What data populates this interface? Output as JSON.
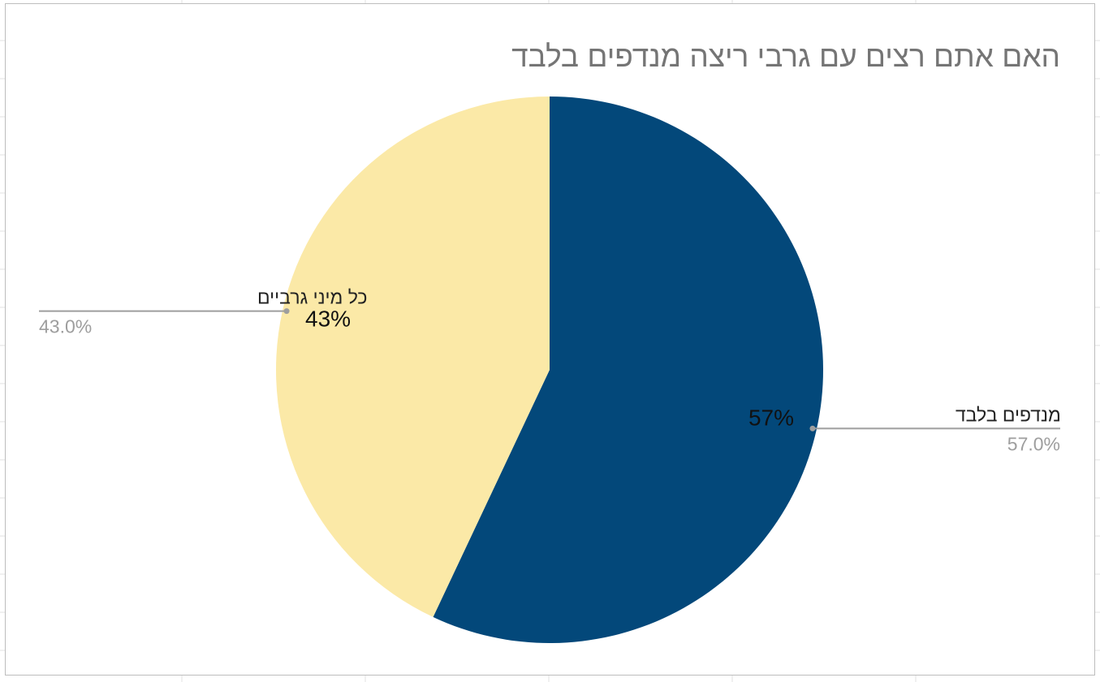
{
  "chart_data": {
    "type": "pie",
    "title": "האם אתם רצים עם גרבי ריצה מנדפים בלבד",
    "slices": [
      {
        "label": "מנדפים בלבד",
        "value": 57.0,
        "inner_label": "57%",
        "outer_value_label": "57.0%",
        "color": "#03487a"
      },
      {
        "label": "כל מיני גרביים",
        "value": 43.0,
        "inner_label": "43%",
        "outer_value_label": "43.0%",
        "color": "#fbe9a7"
      }
    ],
    "start_angle": "12 o'clock",
    "direction": "clockwise",
    "legend": "none"
  },
  "colors": {
    "title": "#757575",
    "leader_line": "#9e9e9e",
    "outer_value_text": "#9e9e9e",
    "background_grid": "#e0e0e0"
  }
}
